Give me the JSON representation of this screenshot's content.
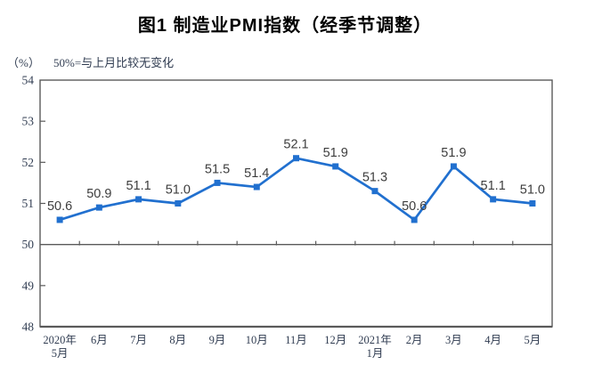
{
  "chart_data": {
    "type": "line",
    "title": "图1 制造业PMI指数（经季节调整）",
    "unit_label": "（%）",
    "note": "50%=与上月比较无变化",
    "categories": [
      "2020年\n5月",
      "6月",
      "7月",
      "8月",
      "9月",
      "10月",
      "11月",
      "12月",
      "2021年\n1月",
      "2月",
      "3月",
      "4月",
      "5月"
    ],
    "series": [
      {
        "name": "制造业PMI",
        "values": [
          50.6,
          50.9,
          51.1,
          51.0,
          51.5,
          51.4,
          52.1,
          51.9,
          51.3,
          50.6,
          51.9,
          51.1,
          51.0
        ],
        "data_labels": [
          "50.6",
          "50.9",
          "51.1",
          "51.0",
          "51.5",
          "51.4",
          "52.1",
          "51.9",
          "51.3",
          "50.6",
          "51.9",
          "51.1",
          "51.0"
        ]
      }
    ],
    "ylim": [
      48,
      54
    ],
    "yticks": [
      "48",
      "49",
      "50",
      "51",
      "52",
      "53",
      "54"
    ],
    "reference_line_value": 50,
    "legend_position": "none",
    "grid": "off",
    "xlabel": "",
    "ylabel": "（%）",
    "colors": {
      "series_line": "#2170cf",
      "marker_fill": "#2170cf",
      "axis_stroke": "#5a5a5a",
      "data_label_text": "#3d3d3d",
      "tick_label_text": "#313d52",
      "title_text": "#000000"
    }
  }
}
